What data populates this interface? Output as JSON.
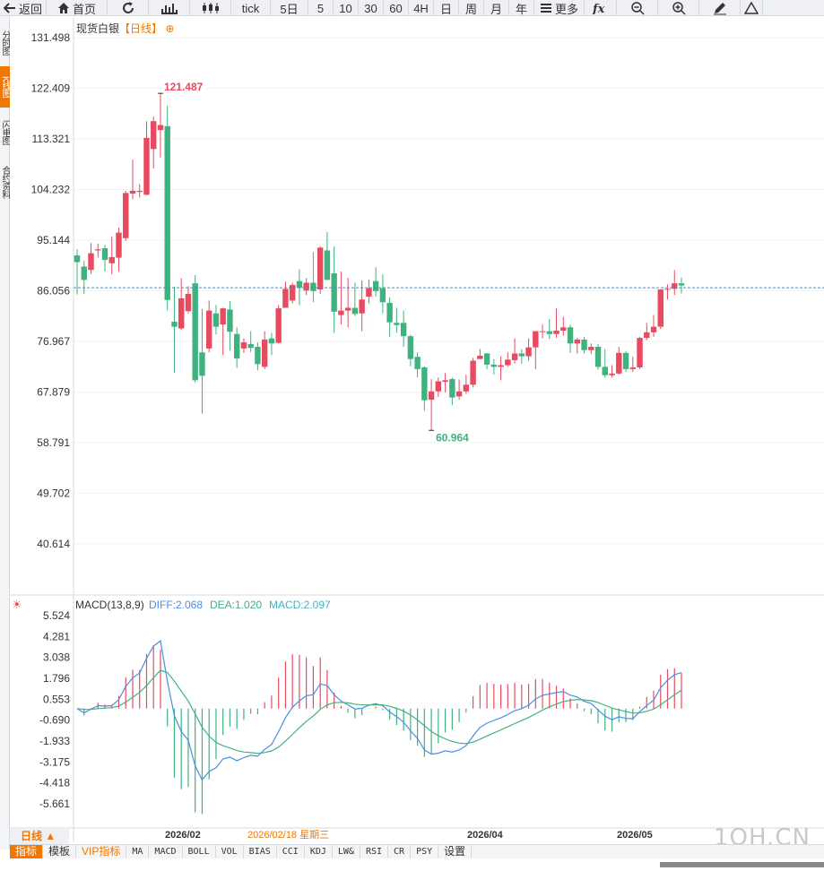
{
  "toolbar": [
    {
      "name": "back-button",
      "label": "返回",
      "icon": "back-arrow-icon",
      "w": 52
    },
    {
      "name": "home-button",
      "label": "首页",
      "icon": "home-icon",
      "w": 68
    },
    {
      "name": "refresh-button",
      "label": "",
      "icon": "refresh-icon",
      "w": 46
    },
    {
      "name": "bar-chart-type-button",
      "label": "",
      "icon": "bar-chart-icon",
      "w": 46
    },
    {
      "name": "candle-chart-type-button",
      "label": "",
      "icon": "candlestick-icon",
      "w": 46
    },
    {
      "name": "period-tick-button",
      "label": "tick",
      "icon": "",
      "w": 44
    },
    {
      "name": "period-5day-button",
      "label": "5日",
      "icon": "",
      "w": 42
    },
    {
      "name": "period-5-button",
      "label": "5",
      "icon": "",
      "w": 28
    },
    {
      "name": "period-10-button",
      "label": "10",
      "icon": "",
      "w": 28
    },
    {
      "name": "period-30-button",
      "label": "30",
      "icon": "",
      "w": 28
    },
    {
      "name": "period-60-button",
      "label": "60",
      "icon": "",
      "w": 28
    },
    {
      "name": "period-4h-button",
      "label": "4H",
      "icon": "",
      "w": 28
    },
    {
      "name": "period-day-button",
      "label": "日",
      "icon": "",
      "w": 28
    },
    {
      "name": "period-week-button",
      "label": "周",
      "icon": "",
      "w": 28
    },
    {
      "name": "period-month-button",
      "label": "月",
      "icon": "",
      "w": 28
    },
    {
      "name": "period-year-button",
      "label": "年",
      "icon": "",
      "w": 28
    },
    {
      "name": "more-button",
      "label": "更多",
      "icon": "menu-icon",
      "w": 56
    },
    {
      "name": "formula-button",
      "label": "",
      "icon": "formula-fx-icon",
      "w": 36
    },
    {
      "name": "zoom-out-button",
      "label": "",
      "icon": "zoom-out-icon",
      "w": 46
    },
    {
      "name": "zoom-in-button",
      "label": "",
      "icon": "zoom-in-icon",
      "w": 46
    },
    {
      "name": "draw-button",
      "label": "",
      "icon": "pencil-icon",
      "w": 46
    },
    {
      "name": "triangle-tool-button",
      "label": "",
      "icon": "triangle-icon",
      "w": 25
    }
  ],
  "side_tabs": [
    {
      "label": "分时图",
      "active": false
    },
    {
      "label": "K线图",
      "active": true
    },
    {
      "label": "闪电图",
      "active": false
    },
    {
      "label": "合约资料",
      "active": false
    }
  ],
  "title": {
    "symbol": "现货白银",
    "period": "【日线】",
    "icon": "circle-plus-icon"
  },
  "colors": {
    "up": "#e84a5f",
    "down": "#3fb27f",
    "diff": "#4a8fe0",
    "dea": "#3fb27f",
    "macd": "#3fb3c9",
    "current_line": "#3a8fc9",
    "grid": "#e6e6e6",
    "accent": "#f07800"
  },
  "price_axis": [
    "131.498",
    "122.409",
    "113.321",
    "104.232",
    "95.144",
    "86.056",
    "76.967",
    "67.879",
    "58.791",
    "49.702",
    "40.614"
  ],
  "macd_axis": [
    "5.524",
    "4.281",
    "3.038",
    "1.796",
    "0.553",
    "-0.690",
    "-1.933",
    "-3.175",
    "-4.418",
    "-5.661"
  ],
  "macd_legend": {
    "name": "MACD(13,8,9)",
    "diff": "DIFF:2.068",
    "dea": "DEA:1.020",
    "macd": "MACD:2.097"
  },
  "date_labels": [
    "2026/02",
    "2026/02/18 星期三",
    "2026/04",
    "2026/05"
  ],
  "high_label": "121.487",
  "low_label": "60.964",
  "period_label": "日线 ▲",
  "bottom_tabs": [
    {
      "label": "指标",
      "active": true,
      "cn": true
    },
    {
      "label": "模板",
      "active": false,
      "cn": true
    },
    {
      "label": "VIP指标",
      "active": false,
      "cn": true,
      "vip": true
    },
    {
      "label": "MA"
    },
    {
      "label": "MACD"
    },
    {
      "label": "BOLL"
    },
    {
      "label": "VOL"
    },
    {
      "label": "BIAS"
    },
    {
      "label": "CCI"
    },
    {
      "label": "KDJ"
    },
    {
      "label": "LW&"
    },
    {
      "label": "RSI"
    },
    {
      "label": "CR"
    },
    {
      "label": "PSY"
    },
    {
      "label": "设置",
      "cn": true
    }
  ],
  "watermark": "1QH.CN",
  "chart_data": {
    "type": "candlestick",
    "price_range": [
      40.614,
      131.498
    ],
    "current_price": 86.6,
    "candles": [
      [
        92.4,
        91.2,
        93.5,
        85.4
      ],
      [
        90.4,
        88.0,
        91.5,
        85.5
      ],
      [
        89.8,
        92.8,
        94.6,
        89.1
      ],
      [
        93.3,
        93.5,
        94.5,
        92.0
      ],
      [
        93.7,
        91.6,
        94.3,
        89.5
      ],
      [
        91.0,
        92.1,
        95.8,
        89.0
      ],
      [
        92.0,
        96.5,
        97.4,
        89.5
      ],
      [
        95.5,
        103.6,
        104.0,
        95.0
      ],
      [
        103.5,
        104.0,
        109.6,
        102.5
      ],
      [
        103.8,
        104.0,
        105.2,
        102.8
      ],
      [
        103.3,
        113.5,
        116.5,
        103.2
      ],
      [
        111.5,
        116.5,
        117.3,
        108.0
      ],
      [
        114.9,
        115.8,
        121.5,
        110.0
      ],
      [
        115.6,
        84.4,
        119.3,
        82.5
      ],
      [
        80.5,
        79.6,
        86.8,
        71.3
      ],
      [
        79.3,
        84.7,
        88.3,
        79.0
      ],
      [
        82.4,
        85.5,
        86.9,
        82.0
      ],
      [
        87.4,
        70.0,
        88.9,
        69.6
      ],
      [
        75.0,
        70.8,
        82.8,
        64.0
      ],
      [
        75.7,
        82.5,
        84.3,
        75.0
      ],
      [
        82.0,
        79.6,
        83.5,
        78.2
      ],
      [
        80.0,
        82.9,
        83.0,
        74.5
      ],
      [
        82.7,
        78.7,
        84.2,
        75.3
      ],
      [
        78.3,
        73.9,
        79.5,
        72.2
      ],
      [
        75.7,
        76.8,
        77.5,
        74.9
      ],
      [
        76.5,
        75.8,
        78.8,
        75.0
      ],
      [
        76.0,
        72.9,
        76.8,
        71.8
      ],
      [
        72.4,
        77.3,
        78.8,
        72.0
      ],
      [
        77.5,
        76.6,
        78.5,
        74.5
      ],
      [
        76.7,
        82.9,
        83.5,
        76.6
      ],
      [
        83.0,
        86.4,
        87.7,
        83.0
      ],
      [
        84.3,
        87.1,
        87.5,
        83.8
      ],
      [
        87.8,
        86.6,
        89.9,
        83.5
      ],
      [
        86.1,
        87.5,
        88.3,
        85.3
      ],
      [
        87.5,
        86.0,
        93.0,
        84.0
      ],
      [
        86.3,
        93.8,
        94.0,
        85.5
      ],
      [
        93.3,
        88.0,
        96.6,
        88.0
      ],
      [
        89.2,
        82.3,
        94.0,
        78.5
      ],
      [
        81.7,
        82.5,
        89.5,
        80.0
      ],
      [
        82.5,
        83.0,
        88.4,
        79.5
      ],
      [
        83.0,
        81.9,
        87.5,
        81.5
      ],
      [
        82.0,
        84.5,
        87.9,
        78.8
      ],
      [
        85.0,
        86.5,
        88.1,
        83.8
      ],
      [
        87.8,
        86.0,
        90.3,
        85.0
      ],
      [
        86.5,
        84.0,
        89.0,
        82.0
      ],
      [
        83.9,
        80.4,
        84.9,
        77.8
      ],
      [
        80.3,
        79.9,
        83.0,
        78.5
      ],
      [
        80.3,
        77.9,
        82.5,
        76.0
      ],
      [
        77.9,
        73.8,
        78.2,
        72.5
      ],
      [
        74.2,
        72.0,
        75.0,
        70.5
      ],
      [
        72.3,
        66.4,
        72.5,
        64.5
      ],
      [
        66.5,
        68.0,
        70.2,
        61.0
      ],
      [
        68.0,
        69.8,
        70.5,
        67.0
      ],
      [
        69.7,
        70.0,
        71.3,
        67.8
      ],
      [
        70.2,
        66.9,
        70.5,
        65.5
      ],
      [
        67.1,
        68.0,
        70.1,
        66.5
      ],
      [
        68.0,
        69.2,
        71.0,
        67.6
      ],
      [
        69.2,
        73.5,
        74.0,
        68.7
      ],
      [
        73.8,
        74.4,
        75.6,
        73.8
      ],
      [
        74.8,
        72.8,
        74.9,
        72.0
      ],
      [
        72.8,
        72.4,
        73.8,
        71.0
      ],
      [
        72.4,
        72.7,
        74.3,
        70.0
      ],
      [
        72.7,
        73.7,
        75.0,
        72.4
      ],
      [
        73.6,
        74.8,
        77.5,
        73.0
      ],
      [
        74.8,
        74.3,
        75.6,
        73.0
      ],
      [
        74.3,
        75.9,
        77.5,
        73.5
      ],
      [
        75.9,
        78.8,
        78.8,
        72.0
      ],
      [
        78.8,
        78.8,
        80.0,
        77.5
      ],
      [
        78.8,
        78.3,
        81.0,
        77.4
      ],
      [
        78.3,
        78.9,
        82.9,
        77.6
      ],
      [
        78.9,
        79.5,
        81.4,
        78.0
      ],
      [
        79.5,
        76.6,
        80.0,
        74.9
      ],
      [
        76.6,
        77.3,
        77.6,
        74.8
      ],
      [
        77.3,
        75.4,
        77.8,
        74.8
      ],
      [
        75.4,
        76.0,
        76.6,
        74.7
      ],
      [
        76.0,
        72.4,
        76.5,
        71.9
      ],
      [
        72.4,
        70.9,
        75.6,
        70.5
      ],
      [
        70.9,
        71.2,
        72.7,
        70.5
      ],
      [
        71.2,
        74.9,
        76.0,
        71.0
      ],
      [
        74.9,
        72.0,
        75.2,
        71.5
      ],
      [
        72.0,
        72.3,
        74.2,
        71.5
      ],
      [
        72.3,
        77.6,
        77.8,
        72.0
      ],
      [
        77.6,
        78.6,
        80.3,
        77.2
      ],
      [
        78.6,
        79.6,
        81.7,
        77.8
      ],
      [
        79.6,
        86.3,
        86.3,
        79.2
      ],
      [
        86.3,
        86.4,
        87.2,
        84.5
      ],
      [
        86.4,
        87.4,
        89.8,
        85.3
      ],
      [
        87.4,
        87.0,
        88.4,
        85.6
      ]
    ]
  }
}
